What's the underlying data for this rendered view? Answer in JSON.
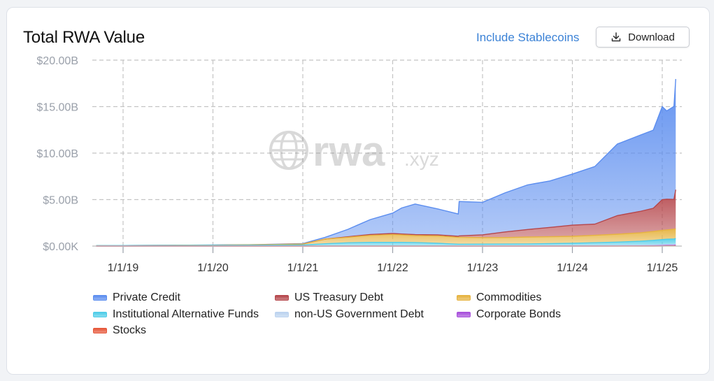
{
  "header": {
    "title": "Total RWA Value",
    "include_stablecoins_label": "Include Stablecoins",
    "download_label": "Download",
    "download_icon": "download-icon"
  },
  "watermark": {
    "logo_text": "rwa",
    "logo_suffix": ".xyz",
    "logo_icon": "globe-icon"
  },
  "colors": {
    "private_credit": "#5b8def",
    "us_treasury": "#b5464b",
    "commodities": "#e6b340",
    "inst_alt": "#4fcde8",
    "non_us_gov": "#bcd3ef",
    "corporate_bonds": "#a74fdb",
    "stocks": "#e6573a",
    "link": "#3b82d6"
  },
  "legend": [
    {
      "key": "private_credit",
      "label": "Private Credit"
    },
    {
      "key": "us_treasury",
      "label": "US Treasury Debt"
    },
    {
      "key": "commodities",
      "label": "Commodities"
    },
    {
      "key": "inst_alt",
      "label": "Institutional Alternative Funds"
    },
    {
      "key": "non_us_gov",
      "label": "non-US Government Debt"
    },
    {
      "key": "corporate_bonds",
      "label": "Corporate Bonds"
    },
    {
      "key": "stocks",
      "label": "Stocks"
    }
  ],
  "chart_data": {
    "type": "area",
    "stacked": true,
    "title": "Total RWA Value",
    "xlabel": "",
    "ylabel": "",
    "xlim": [
      2018.7,
      2025.17
    ],
    "ylim": [
      0,
      20
    ],
    "y_unit": "billion USD",
    "y_ticks": [
      {
        "value": 0,
        "label": "$0.00K"
      },
      {
        "value": 5,
        "label": "$5.00B"
      },
      {
        "value": 10,
        "label": "$10.00B"
      },
      {
        "value": 15,
        "label": "$15.00B"
      },
      {
        "value": 20,
        "label": "$20.00B"
      }
    ],
    "x_ticks": [
      {
        "value": 2019,
        "label": "1/1/19"
      },
      {
        "value": 2020,
        "label": "1/1/20"
      },
      {
        "value": 2021,
        "label": "1/1/21"
      },
      {
        "value": 2022,
        "label": "1/1/22"
      },
      {
        "value": 2023,
        "label": "1/1/23"
      },
      {
        "value": 2024,
        "label": "1/1/24"
      },
      {
        "value": 2025,
        "label": "1/1/25"
      }
    ],
    "grid": true,
    "x": [
      2018.7,
      2019.0,
      2019.5,
      2020.0,
      2020.5,
      2021.0,
      2021.25,
      2021.5,
      2021.75,
      2022.0,
      2022.1,
      2022.25,
      2022.5,
      2022.73,
      2022.74,
      2023.0,
      2023.25,
      2023.5,
      2023.75,
      2024.0,
      2024.25,
      2024.5,
      2024.75,
      2024.9,
      2025.0,
      2025.05,
      2025.13,
      2025.15
    ],
    "series": [
      {
        "name": "Stocks",
        "key": "stocks",
        "values": [
          0,
          0,
          0,
          0,
          0,
          0,
          0,
          0,
          0,
          0,
          0,
          0,
          0,
          0,
          0,
          0,
          0,
          0,
          0,
          0,
          0,
          0,
          0,
          0,
          0.01,
          0.02,
          0.02,
          0.03
        ]
      },
      {
        "name": "Corporate Bonds",
        "key": "corporate_bonds",
        "values": [
          0,
          0,
          0,
          0,
          0,
          0,
          0,
          0,
          0,
          0,
          0,
          0,
          0,
          0,
          0,
          0,
          0,
          0,
          0,
          0,
          0,
          0.01,
          0.02,
          0.03,
          0.04,
          0.05,
          0.06,
          0.07
        ]
      },
      {
        "name": "non-US Government Debt",
        "key": "non_us_gov",
        "values": [
          0,
          0,
          0,
          0,
          0,
          0,
          0,
          0,
          0,
          0,
          0,
          0,
          0,
          0,
          0,
          0.01,
          0.02,
          0.03,
          0.04,
          0.05,
          0.06,
          0.07,
          0.08,
          0.09,
          0.1,
          0.1,
          0.11,
          0.11
        ]
      },
      {
        "name": "Institutional Alternative Funds",
        "key": "inst_alt",
        "values": [
          0.05,
          0.06,
          0.07,
          0.08,
          0.09,
          0.12,
          0.25,
          0.35,
          0.4,
          0.4,
          0.4,
          0.38,
          0.3,
          0.2,
          0.2,
          0.2,
          0.2,
          0.2,
          0.22,
          0.25,
          0.3,
          0.35,
          0.42,
          0.5,
          0.55,
          0.57,
          0.58,
          0.6
        ]
      },
      {
        "name": "Commodities",
        "key": "commodities",
        "values": [
          0,
          0,
          0.01,
          0.02,
          0.05,
          0.1,
          0.5,
          0.6,
          0.75,
          0.85,
          0.8,
          0.75,
          0.8,
          0.75,
          0.75,
          0.7,
          0.7,
          0.75,
          0.75,
          0.75,
          0.8,
          0.85,
          0.9,
          0.95,
          1.0,
          1.0,
          1.05,
          1.05
        ]
      },
      {
        "name": "US Treasury Debt",
        "key": "us_treasury",
        "values": [
          0,
          0,
          0,
          0,
          0,
          0,
          0,
          0.05,
          0.1,
          0.1,
          0.1,
          0.1,
          0.1,
          0.1,
          0.15,
          0.3,
          0.6,
          0.8,
          1.0,
          1.2,
          1.2,
          2.0,
          2.3,
          2.5,
          3.3,
          3.3,
          3.2,
          4.2
        ]
      },
      {
        "name": "Private Credit",
        "key": "private_credit",
        "values": [
          0,
          0,
          0,
          0.01,
          0.02,
          0.05,
          0.2,
          0.8,
          1.6,
          2.2,
          2.8,
          3.3,
          2.8,
          2.4,
          3.7,
          3.5,
          4.2,
          4.8,
          5.0,
          5.5,
          6.2,
          7.7,
          8.2,
          8.4,
          10.0,
          9.5,
          10.0,
          11.9
        ]
      }
    ]
  }
}
